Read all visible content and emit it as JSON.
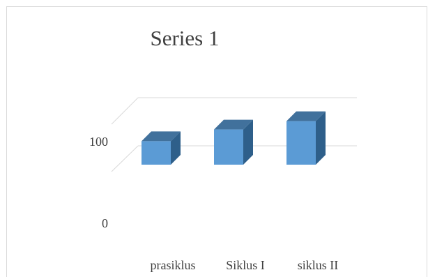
{
  "chart_data": {
    "type": "bar",
    "title": "Series 1",
    "categories": [
      "prasiklus",
      "Siklus I",
      "siklus II"
    ],
    "series": [
      {
        "values": [
          28,
          42,
          52
        ]
      }
    ],
    "ytick_labels": [
      "0",
      "100"
    ],
    "ylim": [
      0,
      100
    ],
    "grid": true,
    "legend": "none",
    "colors": {
      "bar_front": "#5b9bd5",
      "bar_top": "#41719c",
      "bar_side": "#2e5f8a",
      "grid": "#d9d9d9",
      "text": "#404040"
    }
  }
}
